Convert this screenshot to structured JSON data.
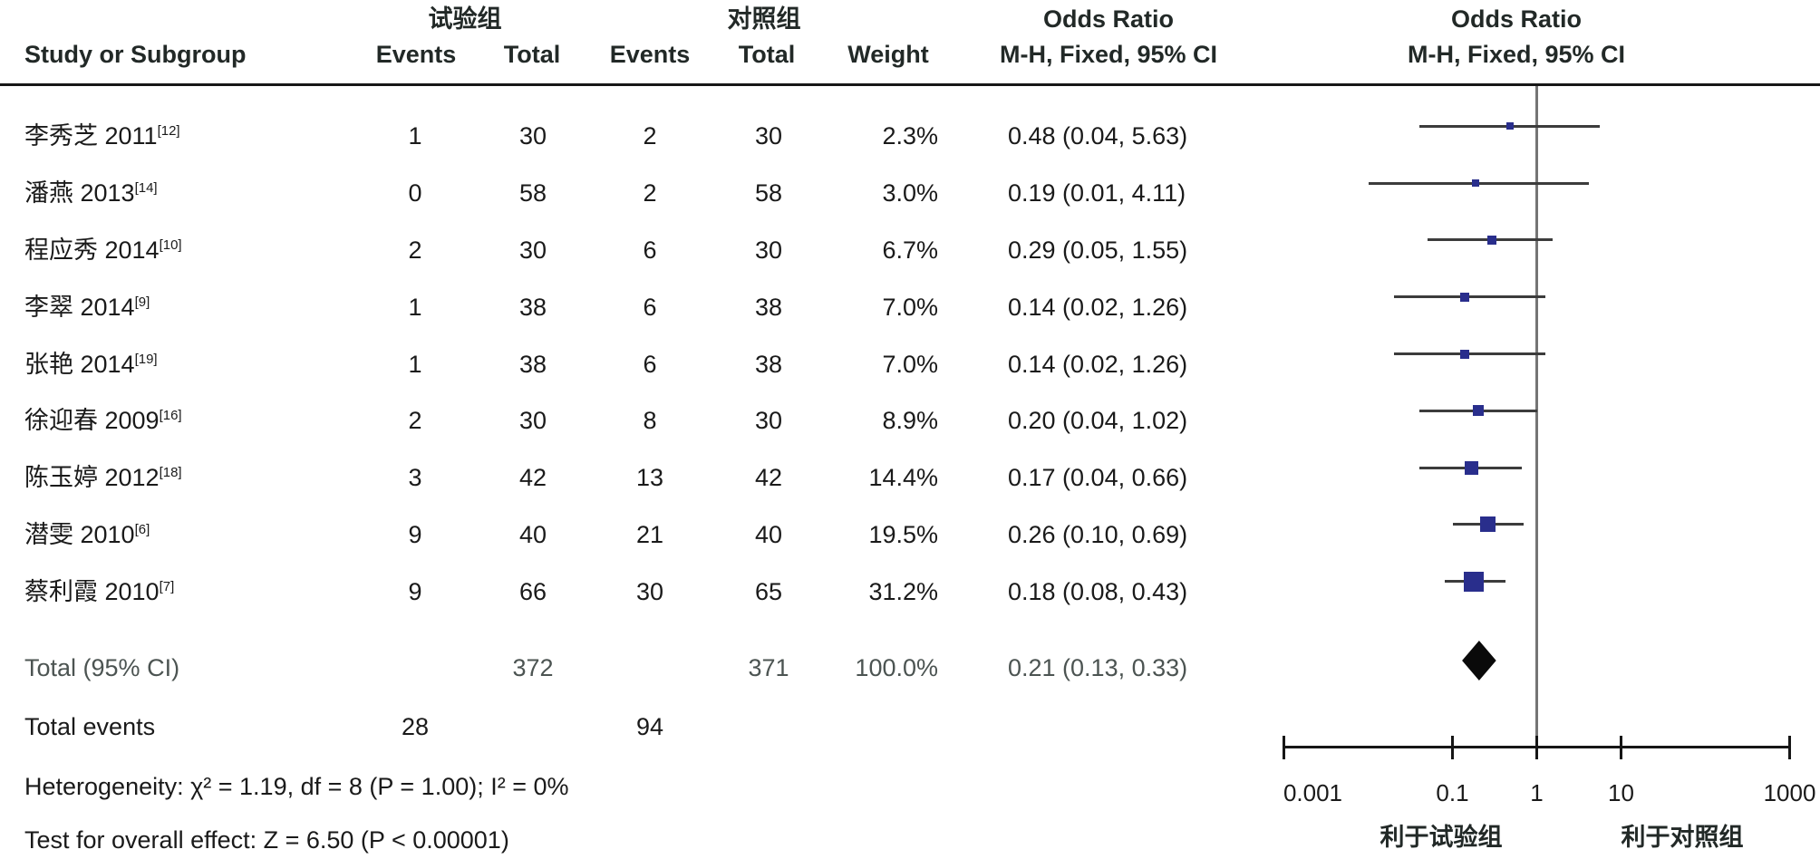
{
  "header": {
    "group_experimental": "试验组",
    "group_control": "对照组",
    "odds_ratio_left": "Odds Ratio",
    "odds_ratio_right": "Odds Ratio",
    "method_left": "M-H, Fixed, 95% CI",
    "method_right": "M-H, Fixed, 95% CI",
    "study": "Study or Subgroup",
    "events_experimental": "Events",
    "total_experimental": "Total",
    "events_control": "Events",
    "total_control": "Total",
    "weight": "Weight"
  },
  "studies": [
    {
      "name": "李秀芝 2011",
      "ref": "[12]",
      "e_events": "1",
      "e_total": "30",
      "c_events": "2",
      "c_total": "30",
      "weight": "2.3%",
      "weight_num": 2.3,
      "or_text": "0.48 (0.04, 5.63)",
      "or": 0.48,
      "lo": 0.04,
      "hi": 5.63
    },
    {
      "name": "潘燕 2013",
      "ref": "[14]",
      "e_events": "0",
      "e_total": "58",
      "c_events": "2",
      "c_total": "58",
      "weight": "3.0%",
      "weight_num": 3.0,
      "or_text": "0.19 (0.01, 4.11)",
      "or": 0.19,
      "lo": 0.01,
      "hi": 4.11
    },
    {
      "name": "程应秀 2014",
      "ref": "[10]",
      "e_events": "2",
      "e_total": "30",
      "c_events": "6",
      "c_total": "30",
      "weight": "6.7%",
      "weight_num": 6.7,
      "or_text": "0.29 (0.05, 1.55)",
      "or": 0.29,
      "lo": 0.05,
      "hi": 1.55
    },
    {
      "name": "李翠 2014",
      "ref": "[9]",
      "e_events": "1",
      "e_total": "38",
      "c_events": "6",
      "c_total": "38",
      "weight": "7.0%",
      "weight_num": 7.0,
      "or_text": "0.14 (0.02, 1.26)",
      "or": 0.14,
      "lo": 0.02,
      "hi": 1.26
    },
    {
      "name": "张艳 2014",
      "ref": "[19]",
      "e_events": "1",
      "e_total": "38",
      "c_events": "6",
      "c_total": "38",
      "weight": "7.0%",
      "weight_num": 7.0,
      "or_text": "0.14 (0.02, 1.26)",
      "or": 0.14,
      "lo": 0.02,
      "hi": 1.26
    },
    {
      "name": "徐迎春 2009",
      "ref": "[16]",
      "e_events": "2",
      "e_total": "30",
      "c_events": "8",
      "c_total": "30",
      "weight": "8.9%",
      "weight_num": 8.9,
      "or_text": "0.20 (0.04, 1.02)",
      "or": 0.2,
      "lo": 0.04,
      "hi": 1.02
    },
    {
      "name": "陈玉婷 2012",
      "ref": "[18]",
      "e_events": "3",
      "e_total": "42",
      "c_events": "13",
      "c_total": "42",
      "weight": "14.4%",
      "weight_num": 14.4,
      "or_text": "0.17 (0.04, 0.66)",
      "or": 0.17,
      "lo": 0.04,
      "hi": 0.66
    },
    {
      "name": "潜雯 2010",
      "ref": "[6]",
      "e_events": "9",
      "e_total": "40",
      "c_events": "21",
      "c_total": "40",
      "weight": "19.5%",
      "weight_num": 19.5,
      "or_text": "0.26 (0.10, 0.69)",
      "or": 0.26,
      "lo": 0.1,
      "hi": 0.69
    },
    {
      "name": "蔡利霞 2010",
      "ref": "[7]",
      "e_events": "9",
      "e_total": "66",
      "c_events": "30",
      "c_total": "65",
      "weight": "31.2%",
      "weight_num": 31.2,
      "or_text": "0.18 (0.08, 0.43)",
      "or": 0.18,
      "lo": 0.08,
      "hi": 0.43
    }
  ],
  "total": {
    "label": "Total (95% CI)",
    "e_total": "372",
    "c_total": "371",
    "weight": "100.0%",
    "or_text": "0.21 (0.13, 0.33)",
    "or": 0.21,
    "lo": 0.13,
    "hi": 0.33
  },
  "total_events": {
    "label": "Total events",
    "experimental": "28",
    "control": "94"
  },
  "footer": {
    "heterogeneity": "Heterogeneity: χ² = 1.19, df = 8 (P = 1.00); I² = 0%",
    "overall_effect": "Test for overall effect: Z = 6.50 (P < 0.00001)"
  },
  "axis": {
    "scale": "log",
    "min": 0.001,
    "max": 1000,
    "null_value": 1,
    "ticks": [
      {
        "value": 0.001,
        "label": "0.001"
      },
      {
        "value": 0.1,
        "label": "0.1"
      },
      {
        "value": 1,
        "label": "1"
      },
      {
        "value": 10,
        "label": "10"
      },
      {
        "value": 1000,
        "label": "1000"
      }
    ],
    "favors_left": "利于试验组",
    "favors_right": "利于对照组"
  },
  "colors": {
    "square": "#292e8c",
    "diamond": "#0a0a0a",
    "null_line": "#757575",
    "ci_line": "#3c3c3c",
    "total_row_text": "#4c5452",
    "text": "#1a1a1a"
  },
  "chart_data": {
    "type": "scatter",
    "variant": "forest-plot-odds-ratio",
    "effect_measure": "Odds Ratio, M-H, Fixed, 95% CI",
    "x_scale": "log",
    "xlim": [
      0.001,
      1000
    ],
    "x_ticks": [
      0.001,
      0.1,
      1,
      10,
      1000
    ],
    "null_line": 1,
    "studies": [
      {
        "study": "李秀芝 2011[12]",
        "exp_events": 1,
        "exp_total": 30,
        "ctrl_events": 2,
        "ctrl_total": 30,
        "weight_pct": 2.3,
        "or": 0.48,
        "ci": [
          0.04,
          5.63
        ]
      },
      {
        "study": "潘燕 2013[14]",
        "exp_events": 0,
        "exp_total": 58,
        "ctrl_events": 2,
        "ctrl_total": 58,
        "weight_pct": 3.0,
        "or": 0.19,
        "ci": [
          0.01,
          4.11
        ]
      },
      {
        "study": "程应秀 2014[10]",
        "exp_events": 2,
        "exp_total": 30,
        "ctrl_events": 6,
        "ctrl_total": 30,
        "weight_pct": 6.7,
        "or": 0.29,
        "ci": [
          0.05,
          1.55
        ]
      },
      {
        "study": "李翠 2014[9]",
        "exp_events": 1,
        "exp_total": 38,
        "ctrl_events": 6,
        "ctrl_total": 38,
        "weight_pct": 7.0,
        "or": 0.14,
        "ci": [
          0.02,
          1.26
        ]
      },
      {
        "study": "张艳 2014[19]",
        "exp_events": 1,
        "exp_total": 38,
        "ctrl_events": 6,
        "ctrl_total": 38,
        "weight_pct": 7.0,
        "or": 0.14,
        "ci": [
          0.02,
          1.26
        ]
      },
      {
        "study": "徐迎春 2009[16]",
        "exp_events": 2,
        "exp_total": 30,
        "ctrl_events": 8,
        "ctrl_total": 30,
        "weight_pct": 8.9,
        "or": 0.2,
        "ci": [
          0.04,
          1.02
        ]
      },
      {
        "study": "陈玉婷 2012[18]",
        "exp_events": 3,
        "exp_total": 42,
        "ctrl_events": 13,
        "ctrl_total": 42,
        "weight_pct": 14.4,
        "or": 0.17,
        "ci": [
          0.04,
          0.66
        ]
      },
      {
        "study": "潜雯 2010[6]",
        "exp_events": 9,
        "exp_total": 40,
        "ctrl_events": 21,
        "ctrl_total": 40,
        "weight_pct": 19.5,
        "or": 0.26,
        "ci": [
          0.1,
          0.69
        ]
      },
      {
        "study": "蔡利霞 2010[7]",
        "exp_events": 9,
        "exp_total": 66,
        "ctrl_events": 30,
        "ctrl_total": 65,
        "weight_pct": 31.2,
        "or": 0.18,
        "ci": [
          0.08,
          0.43
        ]
      }
    ],
    "summary": {
      "label": "Total (95% CI)",
      "exp_total": 372,
      "ctrl_total": 371,
      "weight_pct": 100.0,
      "or": 0.21,
      "ci": [
        0.13,
        0.33
      ],
      "total_events_exp": 28,
      "total_events_ctrl": 94
    },
    "heterogeneity": {
      "chi2": 1.19,
      "df": 8,
      "p": "1.00",
      "i2": "0%"
    },
    "overall_effect": {
      "z": 6.5,
      "p": "< 0.00001"
    },
    "favors": {
      "left": "利于试验组",
      "right": "利于对照组"
    }
  }
}
